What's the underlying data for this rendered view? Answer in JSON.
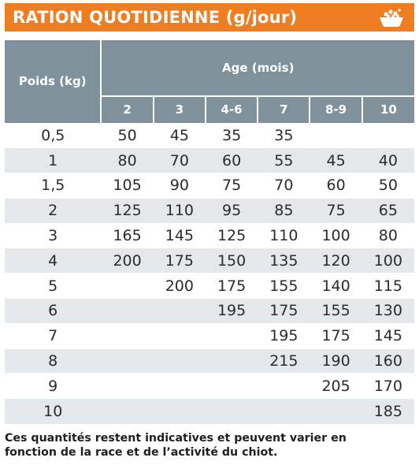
{
  "banner": {
    "title": "RATION QUOTIDIENNE (g/jour)",
    "icon": "food-bowl-icon",
    "color": "#ef7d22"
  },
  "table": {
    "header_color": "#7f929c",
    "row_alt_color": "#e5e8eb",
    "weight_header": "Poids (kg)",
    "age_header": "Age (mois)",
    "age_columns": [
      "2",
      "3",
      "4-6",
      "7",
      "8-9",
      "10"
    ],
    "rows": [
      {
        "weight": "0,5",
        "values": [
          "50",
          "45",
          "35",
          "35",
          "",
          ""
        ]
      },
      {
        "weight": "1",
        "values": [
          "80",
          "70",
          "60",
          "55",
          "45",
          "40"
        ]
      },
      {
        "weight": "1,5",
        "values": [
          "105",
          "90",
          "75",
          "70",
          "60",
          "50"
        ]
      },
      {
        "weight": "2",
        "values": [
          "125",
          "110",
          "95",
          "85",
          "75",
          "65"
        ]
      },
      {
        "weight": "3",
        "values": [
          "165",
          "145",
          "125",
          "110",
          "100",
          "80"
        ]
      },
      {
        "weight": "4",
        "values": [
          "200",
          "175",
          "150",
          "135",
          "120",
          "100"
        ]
      },
      {
        "weight": "5",
        "values": [
          "",
          "200",
          "175",
          "155",
          "140",
          "115"
        ]
      },
      {
        "weight": "6",
        "values": [
          "",
          "",
          "195",
          "175",
          "155",
          "130"
        ]
      },
      {
        "weight": "7",
        "values": [
          "",
          "",
          "",
          "195",
          "175",
          "145"
        ]
      },
      {
        "weight": "8",
        "values": [
          "",
          "",
          "",
          "215",
          "190",
          "160"
        ]
      },
      {
        "weight": "9",
        "values": [
          "",
          "",
          "",
          "",
          "205",
          "170"
        ]
      },
      {
        "weight": "10",
        "values": [
          "",
          "",
          "",
          "",
          "",
          "185"
        ]
      }
    ]
  },
  "footnote": {
    "line1": "Ces quantités restent indicatives et peuvent varier en",
    "line2": "fonction de la race et de l’activité du chiot."
  }
}
